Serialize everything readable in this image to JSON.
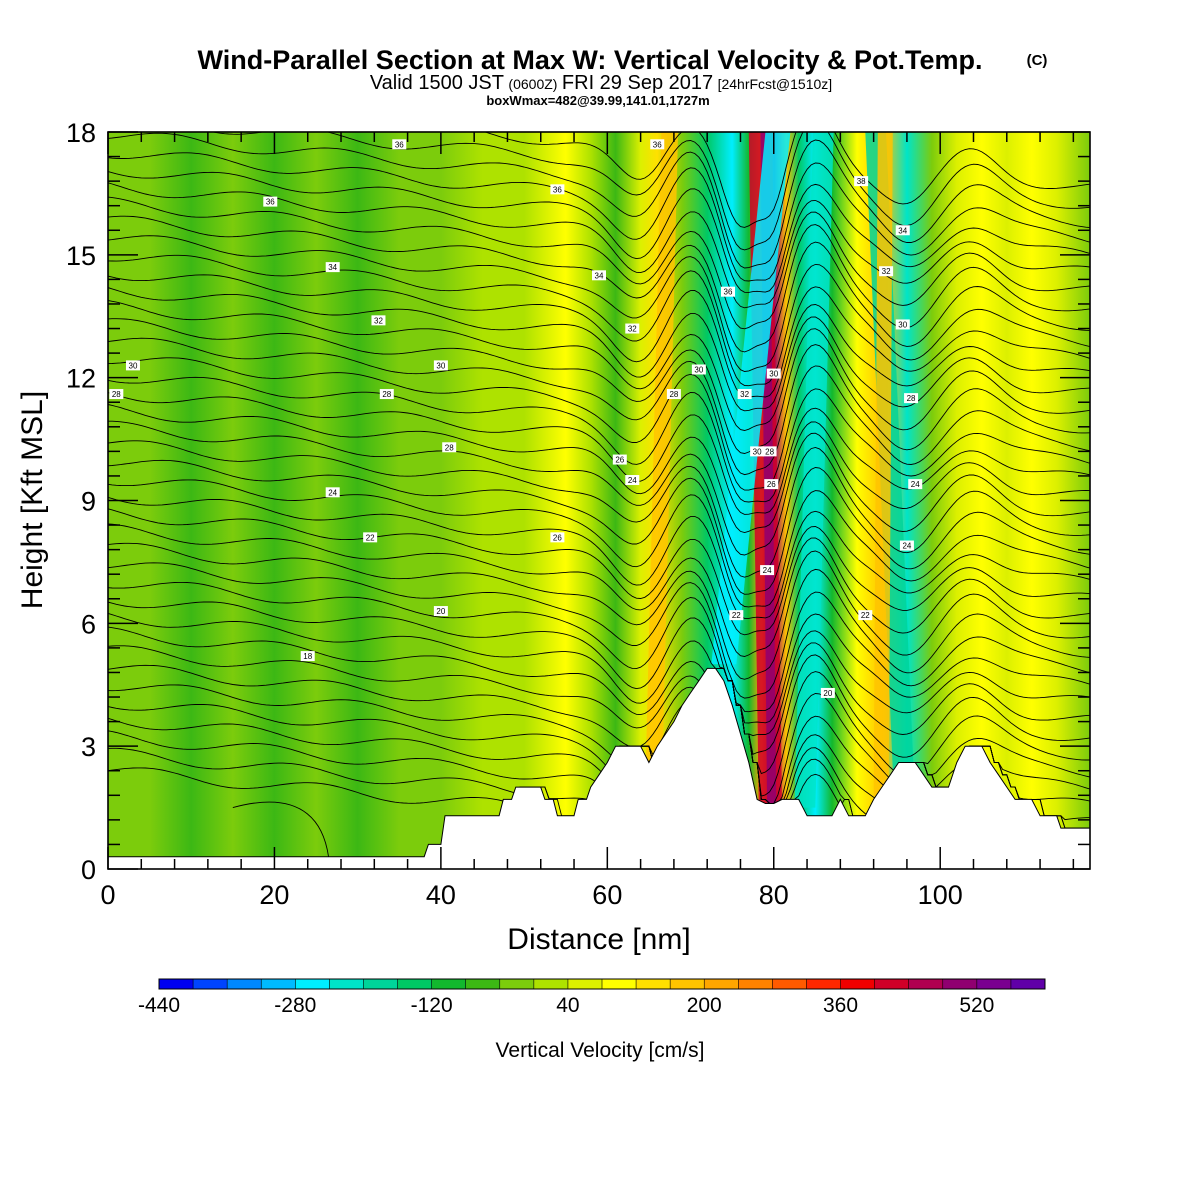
{
  "header": {
    "title": "Wind-Parallel Section at Max W: Vertical Velocity & Pot.Temp.",
    "title_tag": "(C)",
    "valid_a": "Valid 1500 JST",
    "valid_b": "(0600Z)",
    "valid_c": "FRI 29 Sep 2017",
    "valid_d": "[24hrFcst@1510z]",
    "box_info": "boxWmax=482@39.99,141.01,1727m"
  },
  "chart_data": {
    "type": "heatmap",
    "xlabel": "Distance [nm]",
    "ylabel": "Height [Kft MSL]",
    "xlim": [
      0,
      118
    ],
    "ylim": [
      0,
      18
    ],
    "x_ticks": [
      0,
      20,
      40,
      60,
      80,
      100
    ],
    "y_ticks": [
      0,
      3,
      6,
      9,
      12,
      15,
      18
    ],
    "grid": false,
    "colorbar": {
      "label": "Vertical Velocity [cm/s]",
      "position": "bottom",
      "tick_labels": [
        "-440",
        "-280",
        "-120",
        "40",
        "200",
        "360",
        "520"
      ],
      "colors": [
        "#0000f0",
        "#0044ff",
        "#0088ff",
        "#00bbff",
        "#00eeff",
        "#00e4c8",
        "#00d49a",
        "#00c864",
        "#12b82e",
        "#3cb814",
        "#7ccc0c",
        "#aee200",
        "#dcf000",
        "#ffff00",
        "#ffe000",
        "#ffc400",
        "#ffa600",
        "#ff8200",
        "#ff5a00",
        "#ff2800",
        "#f00000",
        "#d00028",
        "#b00050",
        "#900070",
        "#7a0090",
        "#6000a8"
      ]
    },
    "vertical_velocity_columns": [
      {
        "x": 0,
        "w": -40
      },
      {
        "x": 5,
        "w": -20
      },
      {
        "x": 10,
        "w": -60
      },
      {
        "x": 15,
        "w": -40
      },
      {
        "x": 20,
        "w": -60
      },
      {
        "x": 25,
        "w": -40
      },
      {
        "x": 30,
        "w": -60
      },
      {
        "x": 35,
        "w": -20
      },
      {
        "x": 40,
        "w": -30
      },
      {
        "x": 45,
        "w": 0
      },
      {
        "x": 50,
        "w": 30
      },
      {
        "x": 55,
        "w": 90
      },
      {
        "x": 58,
        "w": 20
      },
      {
        "x": 61,
        "w": -80
      },
      {
        "x": 64,
        "w": 60
      },
      {
        "x": 66,
        "w": 150
      },
      {
        "x": 69,
        "w": -40
      },
      {
        "x": 72,
        "w": -160
      },
      {
        "x": 75,
        "w": -260
      },
      {
        "x": 77,
        "w": -120
      },
      {
        "x": 78.5,
        "w": 200
      },
      {
        "x": 80,
        "w": 480
      },
      {
        "x": 81.5,
        "w": 180
      },
      {
        "x": 83,
        "w": -140
      },
      {
        "x": 85,
        "w": -260
      },
      {
        "x": 87,
        "w": -100
      },
      {
        "x": 90,
        "w": 80
      },
      {
        "x": 93,
        "w": 160
      },
      {
        "x": 96,
        "w": -220
      },
      {
        "x": 99,
        "w": -40
      },
      {
        "x": 102,
        "w": 60
      },
      {
        "x": 105,
        "w": 100
      },
      {
        "x": 108,
        "w": 40
      },
      {
        "x": 111,
        "w": 100
      },
      {
        "x": 114,
        "w": 40
      },
      {
        "x": 118,
        "w": -30
      }
    ],
    "terrain_kft": [
      {
        "x": 0,
        "h": 0.3
      },
      {
        "x": 38,
        "h": 0.3
      },
      {
        "x": 38.5,
        "h": 0.6
      },
      {
        "x": 40,
        "h": 0.6
      },
      {
        "x": 40.5,
        "h": 1.3
      },
      {
        "x": 47,
        "h": 1.3
      },
      {
        "x": 47.5,
        "h": 1.7
      },
      {
        "x": 48.5,
        "h": 1.7
      },
      {
        "x": 49,
        "h": 2.0
      },
      {
        "x": 52,
        "h": 2.0
      },
      {
        "x": 52.5,
        "h": 1.7
      },
      {
        "x": 53.5,
        "h": 1.7
      },
      {
        "x": 54,
        "h": 1.3
      },
      {
        "x": 56,
        "h": 1.3
      },
      {
        "x": 56.5,
        "h": 1.7
      },
      {
        "x": 57.5,
        "h": 1.7
      },
      {
        "x": 58,
        "h": 2.0
      },
      {
        "x": 59,
        "h": 2.3
      },
      {
        "x": 60,
        "h": 2.6
      },
      {
        "x": 61,
        "h": 3.0
      },
      {
        "x": 64,
        "h": 3.0
      },
      {
        "x": 65,
        "h": 2.6
      },
      {
        "x": 66,
        "h": 3.0
      },
      {
        "x": 67,
        "h": 3.3
      },
      {
        "x": 68,
        "h": 3.6
      },
      {
        "x": 69,
        "h": 4.0
      },
      {
        "x": 70,
        "h": 4.3
      },
      {
        "x": 71,
        "h": 4.6
      },
      {
        "x": 72,
        "h": 4.9
      },
      {
        "x": 73,
        "h": 4.9
      },
      {
        "x": 74,
        "h": 4.6
      },
      {
        "x": 75,
        "h": 4.0
      },
      {
        "x": 76,
        "h": 3.3
      },
      {
        "x": 77,
        "h": 2.6
      },
      {
        "x": 78,
        "h": 1.7
      },
      {
        "x": 79,
        "h": 1.6
      },
      {
        "x": 80,
        "h": 1.6
      },
      {
        "x": 81,
        "h": 1.7
      },
      {
        "x": 83,
        "h": 1.7
      },
      {
        "x": 84,
        "h": 1.3
      },
      {
        "x": 87,
        "h": 1.3
      },
      {
        "x": 88,
        "h": 1.7
      },
      {
        "x": 89,
        "h": 1.3
      },
      {
        "x": 91,
        "h": 1.3
      },
      {
        "x": 92,
        "h": 1.7
      },
      {
        "x": 93,
        "h": 2.0
      },
      {
        "x": 94,
        "h": 2.3
      },
      {
        "x": 95,
        "h": 2.6
      },
      {
        "x": 97,
        "h": 2.6
      },
      {
        "x": 98,
        "h": 2.3
      },
      {
        "x": 99,
        "h": 2.0
      },
      {
        "x": 101,
        "h": 2.0
      },
      {
        "x": 102,
        "h": 2.6
      },
      {
        "x": 103,
        "h": 3.0
      },
      {
        "x": 105,
        "h": 3.0
      },
      {
        "x": 106,
        "h": 2.6
      },
      {
        "x": 107,
        "h": 2.3
      },
      {
        "x": 108,
        "h": 2.0
      },
      {
        "x": 109,
        "h": 1.7
      },
      {
        "x": 111,
        "h": 1.7
      },
      {
        "x": 112,
        "h": 1.3
      },
      {
        "x": 114,
        "h": 1.3
      },
      {
        "x": 114.5,
        "h": 1.0
      },
      {
        "x": 118,
        "h": 1.0
      }
    ],
    "theta_contour_labels": [
      {
        "text": "36",
        "x": 35,
        "y": 17.7
      },
      {
        "text": "36",
        "x": 19.5,
        "y": 16.3
      },
      {
        "text": "34",
        "x": 27,
        "y": 14.7
      },
      {
        "text": "32",
        "x": 32.5,
        "y": 13.4
      },
      {
        "text": "30",
        "x": 3,
        "y": 12.3
      },
      {
        "text": "30",
        "x": 40,
        "y": 12.3
      },
      {
        "text": "28",
        "x": 1,
        "y": 11.6
      },
      {
        "text": "28",
        "x": 33.5,
        "y": 11.6
      },
      {
        "text": "28",
        "x": 41,
        "y": 10.3
      },
      {
        "text": "24",
        "x": 27,
        "y": 9.2
      },
      {
        "text": "22",
        "x": 31.5,
        "y": 8.1
      },
      {
        "text": "20",
        "x": 40,
        "y": 6.3
      },
      {
        "text": "18",
        "x": 24,
        "y": 5.2
      },
      {
        "text": "26",
        "x": 54,
        "y": 8.1
      },
      {
        "text": "36",
        "x": 66,
        "y": 17.7
      },
      {
        "text": "36",
        "x": 54,
        "y": 16.6
      },
      {
        "text": "34",
        "x": 59,
        "y": 14.5
      },
      {
        "text": "32",
        "x": 63,
        "y": 13.2
      },
      {
        "text": "30",
        "x": 71,
        "y": 12.2
      },
      {
        "text": "28",
        "x": 68,
        "y": 11.6
      },
      {
        "text": "26",
        "x": 61.5,
        "y": 10.0
      },
      {
        "text": "24",
        "x": 63,
        "y": 9.5
      },
      {
        "text": "36",
        "x": 74.5,
        "y": 14.1
      },
      {
        "text": "32",
        "x": 76.5,
        "y": 11.6
      },
      {
        "text": "30",
        "x": 80,
        "y": 12.1
      },
      {
        "text": "30",
        "x": 78,
        "y": 10.2
      },
      {
        "text": "28",
        "x": 79.5,
        "y": 10.2
      },
      {
        "text": "26",
        "x": 79.7,
        "y": 9.4
      },
      {
        "text": "24",
        "x": 79.2,
        "y": 7.3
      },
      {
        "text": "22",
        "x": 75.5,
        "y": 6.2
      },
      {
        "text": "38",
        "x": 90.5,
        "y": 16.8
      },
      {
        "text": "34",
        "x": 95.5,
        "y": 15.6
      },
      {
        "text": "32",
        "x": 93.5,
        "y": 14.6
      },
      {
        "text": "30",
        "x": 95.5,
        "y": 13.3
      },
      {
        "text": "28",
        "x": 96.5,
        "y": 11.5
      },
      {
        "text": "24",
        "x": 97,
        "y": 9.4
      },
      {
        "text": "24",
        "x": 96,
        "y": 7.9
      },
      {
        "text": "22",
        "x": 91,
        "y": 6.2
      },
      {
        "text": "20",
        "x": 86.5,
        "y": 4.3
      }
    ]
  }
}
